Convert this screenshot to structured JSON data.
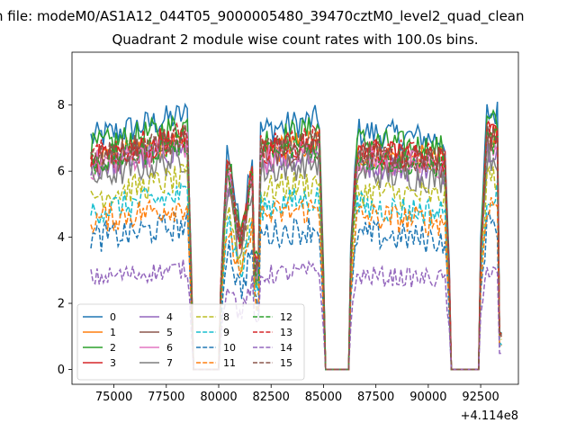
{
  "suptitle": "n file: modeM0/AS1A12_044T05_9000005480_39470cztM0_level2_quad_clean",
  "chart_data": {
    "type": "line",
    "title": "Quadrant 2 module wise count rates with 100.0s bins.",
    "xlabel": "",
    "ylabel": "",
    "x_offset_label": "+4.114e8",
    "xlim": [
      73000,
      94300
    ],
    "ylim": [
      -0.45,
      9.6
    ],
    "xticks": [
      75000,
      77500,
      80000,
      82500,
      85000,
      87500,
      90000,
      92500
    ],
    "xtick_labels": [
      "75000",
      "77500",
      "80000",
      "82500",
      "85000",
      "87500",
      "90000",
      "92500"
    ],
    "yticks": [
      0,
      2,
      4,
      6,
      8
    ],
    "ytick_labels": [
      "0",
      "2",
      "4",
      "6",
      "8"
    ],
    "legend_position": "lower-left",
    "legend_columns": 4,
    "gaps": [
      [
        78700,
        80100
      ],
      [
        85000,
        86300
      ],
      [
        91000,
        92500
      ]
    ],
    "series": [
      {
        "name": "0",
        "color": "#1f77b4",
        "dash": "solid",
        "level": 7.6
      },
      {
        "name": "1",
        "color": "#ff7f0e",
        "dash": "solid",
        "level": 6.9
      },
      {
        "name": "2",
        "color": "#2ca02c",
        "dash": "solid",
        "level": 7.3
      },
      {
        "name": "3",
        "color": "#d62728",
        "dash": "solid",
        "level": 6.9
      },
      {
        "name": "4",
        "color": "#9467bd",
        "dash": "solid",
        "level": 6.6
      },
      {
        "name": "5",
        "color": "#8c564b",
        "dash": "solid",
        "level": 6.8
      },
      {
        "name": "6",
        "color": "#e377c2",
        "dash": "solid",
        "level": 6.7
      },
      {
        "name": "7",
        "color": "#7f7f7f",
        "dash": "solid",
        "level": 6.3
      },
      {
        "name": "8",
        "color": "#bcbd22",
        "dash": "dashed",
        "level": 5.7
      },
      {
        "name": "9",
        "color": "#17becf",
        "dash": "dashed",
        "level": 5.2
      },
      {
        "name": "10",
        "color": "#1f77b4",
        "dash": "dashed",
        "level": 4.3
      },
      {
        "name": "11",
        "color": "#ff7f0e",
        "dash": "dashed",
        "level": 4.9
      },
      {
        "name": "12",
        "color": "#2ca02c",
        "dash": "dashed",
        "level": 6.8
      },
      {
        "name": "13",
        "color": "#d62728",
        "dash": "dashed",
        "level": 7.0
      },
      {
        "name": "14",
        "color": "#9467bd",
        "dash": "dashed",
        "level": 3.0
      },
      {
        "name": "15",
        "color": "#8c564b",
        "dash": "dashed",
        "level": 6.9
      }
    ]
  }
}
